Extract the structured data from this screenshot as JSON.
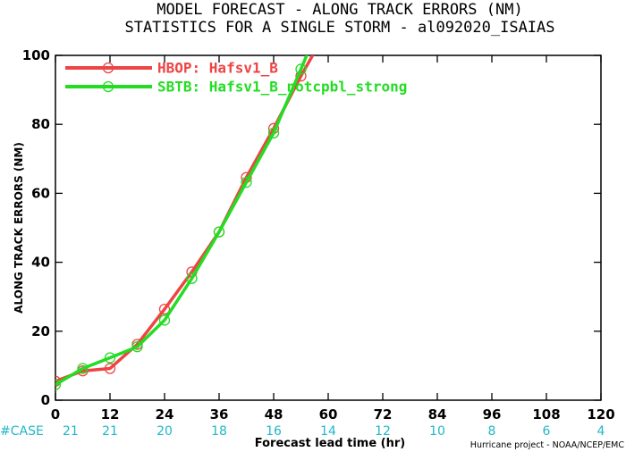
{
  "chart_data": {
    "type": "line",
    "title": "MODEL FORECAST - ALONG TRACK ERRORS (NM)",
    "subtitle": "STATISTICS FOR A SINGLE STORM - al092020_ISAIAS",
    "xlabel": "Forecast lead time (hr)",
    "ylabel": "ALONG TRACK ERRORS (NM)",
    "xlim": [
      0,
      120
    ],
    "ylim": [
      0,
      100
    ],
    "x_ticks": [
      0,
      12,
      24,
      36,
      48,
      60,
      72,
      84,
      96,
      108,
      120
    ],
    "y_ticks": [
      0,
      20,
      40,
      60,
      80,
      100
    ],
    "grid": false,
    "legend_position": "top-left",
    "series": [
      {
        "name": "HBOP: Hafsv1_B",
        "color": "#ee4444",
        "x": [
          0,
          6,
          12,
          18,
          24,
          30,
          36,
          42,
          48,
          54,
          60
        ],
        "y": [
          5.5,
          8.5,
          9.2,
          16.2,
          26.4,
          37.2,
          48.8,
          64.6,
          78.8,
          94,
          108
        ]
      },
      {
        "name": "SBTB: Hafsv1_B_notcpbl_strong",
        "color": "#22dd22",
        "x": [
          0,
          6,
          12,
          18,
          24,
          30,
          36,
          42,
          48,
          54,
          60
        ],
        "y": [
          4.5,
          9.2,
          12.3,
          15.5,
          23.2,
          35.3,
          48.8,
          63.2,
          77.5,
          96,
          115
        ]
      }
    ],
    "case_label": "#CASE",
    "case_counts": [
      "21",
      "21",
      "20",
      "18",
      "16",
      "14",
      "12",
      "10",
      "8",
      "6",
      "4"
    ],
    "credit": "Hurricane project - NOAA/NCEP/EMC"
  }
}
